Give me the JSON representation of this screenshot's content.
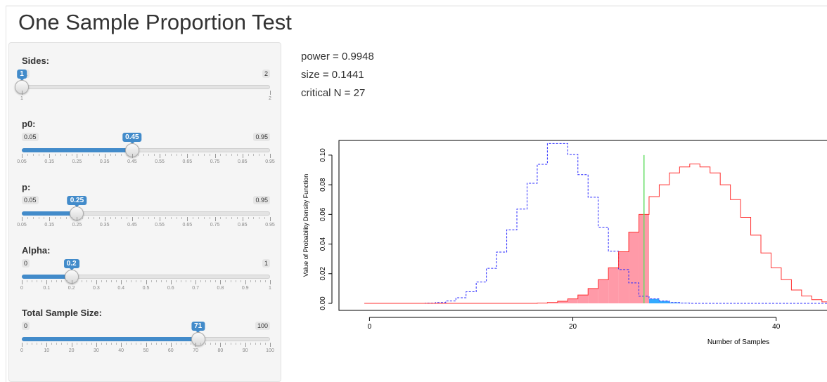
{
  "title": "One Sample Proportion Test",
  "sliders": [
    {
      "label": "Sides:",
      "min": 1,
      "max": 2,
      "value": 1,
      "min_label": "1",
      "max_label": "2",
      "value_label": "1",
      "step_labels": [
        "1",
        "2"
      ],
      "minor": 0,
      "show_fill": false
    },
    {
      "label": "p0:",
      "min": 0.05,
      "max": 0.95,
      "value": 0.45,
      "min_label": "0.05",
      "max_label": "0.95",
      "value_label": "0.45",
      "step_labels": [
        "0.05",
        "0.15",
        "0.25",
        "0.35",
        "0.45",
        "0.55",
        "0.65",
        "0.75",
        "0.85",
        "0.95"
      ],
      "minor": 4,
      "show_fill": true
    },
    {
      "label": "p:",
      "min": 0.05,
      "max": 0.95,
      "value": 0.25,
      "min_label": "0.05",
      "max_label": "0.95",
      "value_label": "0.25",
      "step_labels": [
        "0.05",
        "0.15",
        "0.25",
        "0.35",
        "0.45",
        "0.55",
        "0.65",
        "0.75",
        "0.85",
        "0.95"
      ],
      "minor": 4,
      "show_fill": true
    },
    {
      "label": "Alpha:",
      "min": 0,
      "max": 1,
      "value": 0.2,
      "min_label": "0",
      "max_label": "1",
      "value_label": "0.2",
      "step_labels": [
        "0",
        "0.1",
        "0.2",
        "0.3",
        "0.4",
        "0.5",
        "0.6",
        "0.7",
        "0.8",
        "0.9",
        "1"
      ],
      "minor": 4,
      "show_fill": true
    },
    {
      "label": "Total Sample Size:",
      "min": 0,
      "max": 100,
      "value": 71,
      "min_label": "0",
      "max_label": "100",
      "value_label": "71",
      "step_labels": [
        "0",
        "10",
        "20",
        "30",
        "40",
        "50",
        "60",
        "70",
        "80",
        "90",
        "100"
      ],
      "minor": 4,
      "show_fill": true
    }
  ],
  "results": {
    "power": "power = 0.9948",
    "size": "size = 0.1441",
    "critical": "critical N = 27"
  },
  "chart_data": {
    "type": "line",
    "xlabel": "Number of Samples",
    "ylabel": "Value of Probability Density Function",
    "xlim": [
      -3,
      45
    ],
    "ylim": [
      0,
      0.108
    ],
    "x_ticks": [
      0,
      20,
      40
    ],
    "y_ticks": [
      0.0,
      0.02,
      0.04,
      0.06,
      0.08,
      0.1
    ],
    "y_tick_labels": [
      "0.00",
      "0.02",
      "0.04",
      "0.06",
      "0.08",
      "0.10"
    ],
    "critical_n": 27,
    "colors": {
      "null": "#2b2bff",
      "alt": "#ff3030",
      "crit": "#66dd66",
      "null_fill": "#33aaff",
      "alt_fill": "#ff9aa8"
    },
    "series": [
      {
        "x": [
          0,
          1,
          2,
          3,
          4,
          5,
          6,
          7,
          8,
          9,
          10,
          11,
          12,
          13,
          14,
          15,
          16,
          17,
          18,
          19,
          20,
          21,
          22,
          23,
          24,
          25,
          26,
          27,
          28,
          29,
          30,
          31,
          32,
          33,
          34,
          35,
          36,
          37,
          38,
          39,
          40,
          41,
          42,
          43,
          44,
          45
        ],
        "values": [
          0,
          0,
          0,
          0,
          0,
          0,
          0.0002,
          0.0006,
          0.0016,
          0.0038,
          0.0078,
          0.0144,
          0.0236,
          0.0346,
          0.0496,
          0.0636,
          0.081,
          0.0938,
          0.1078,
          0.1078,
          0.1004,
          0.0868,
          0.0716,
          0.0514,
          0.0352,
          0.0228,
          0.0138,
          0.0048,
          0.003,
          0.0016,
          0.0006,
          0.0002,
          0,
          0,
          0,
          0,
          0,
          0,
          0,
          0,
          0,
          0,
          0,
          0,
          0,
          0
        ]
      },
      {
        "x": [
          0,
          1,
          2,
          3,
          4,
          5,
          6,
          7,
          8,
          9,
          10,
          11,
          12,
          13,
          14,
          15,
          16,
          17,
          18,
          19,
          20,
          21,
          22,
          23,
          24,
          25,
          26,
          27,
          28,
          29,
          30,
          31,
          32,
          33,
          34,
          35,
          36,
          37,
          38,
          39,
          40,
          41,
          42,
          43,
          44,
          45
        ],
        "values": [
          0,
          0,
          0,
          0,
          0,
          0,
          0,
          0,
          0,
          0,
          0,
          0,
          0,
          0,
          0,
          0,
          0,
          0.0002,
          0.0006,
          0.0014,
          0.003,
          0.0056,
          0.01,
          0.016,
          0.024,
          0.0348,
          0.048,
          0.06,
          0.072,
          0.08,
          0.088,
          0.092,
          0.094,
          0.092,
          0.088,
          0.08,
          0.07,
          0.058,
          0.046,
          0.034,
          0.024,
          0.016,
          0.009,
          0.005,
          0.0025,
          0.001
        ]
      }
    ]
  }
}
